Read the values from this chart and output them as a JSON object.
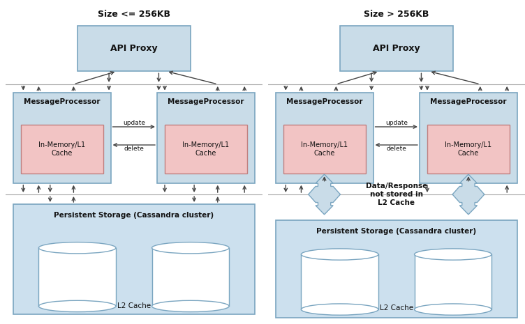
{
  "colors": {
    "box_blue_fill": "#c9dce8",
    "box_blue_border": "#7aa5c0",
    "box_pink_fill": "#f2c4c4",
    "box_pink_border": "#c08080",
    "storage_fill": "#cce0ee",
    "storage_border": "#7aa5c0",
    "arrow_color": "#444444",
    "text_color": "#111111",
    "line_color": "#aaaaaa",
    "cross_fill": "#c9dce8",
    "cross_border": "#7aa5c0",
    "bg": "#ffffff"
  },
  "d1_title": "Size <= 256KB",
  "d2_title": "Size > 256KB",
  "api_label": "API Proxy",
  "mp_label": "MessageProcessor",
  "cache_label": "In-Memory/L1\nCache",
  "storage_label": "Persistent Storage (Cassandra cluster)",
  "l2_label": "L2 Cache",
  "update_label": "update",
  "delete_label": "delete",
  "no_cache_label": "Data/Response\nnot stored in\nL2 Cache"
}
